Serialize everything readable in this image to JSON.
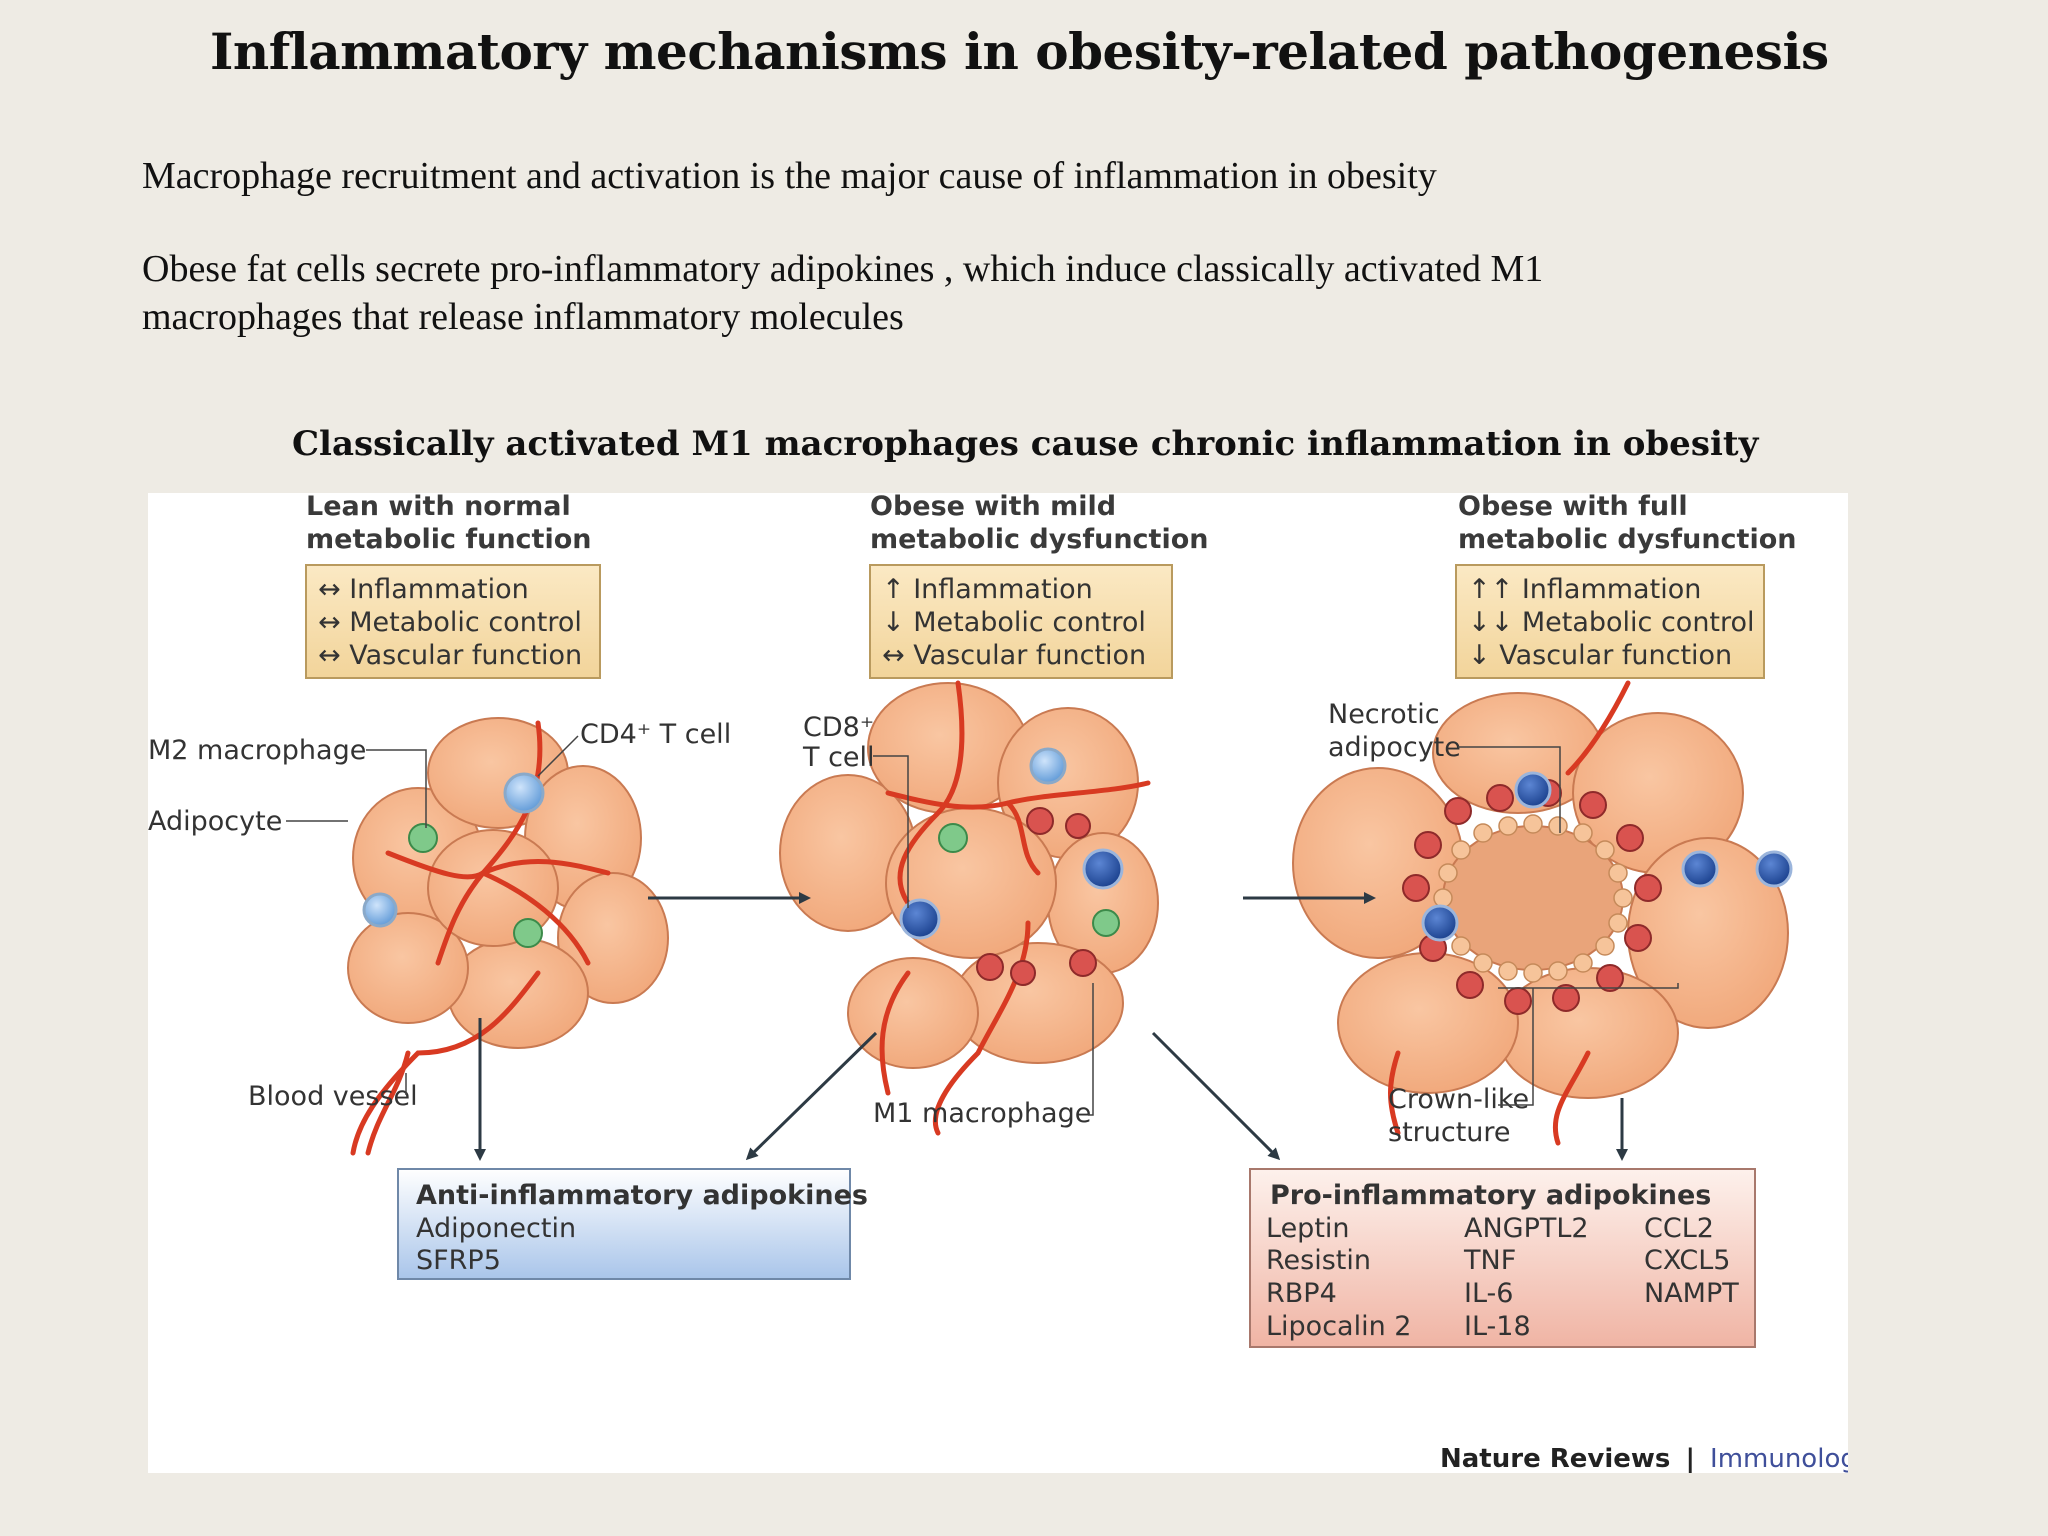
{
  "title": "Inflammatory mechanisms in obesity-related pathogenesis",
  "paragraph1": "Macrophage recruitment and activation is the major cause of inflammation in obesity",
  "paragraph2_line1": "Obese fat cells secrete  pro-inflammatory adipokines , which induce classically activated M1",
  "paragraph2_line2": "macrophages  that release inflammatory molecules",
  "subtitle": "Classically activated M1 macrophages  cause chronic inflammation in obesity",
  "stages": [
    {
      "title_line1": "Lean with normal",
      "title_line2": "metabolic function",
      "box": [
        "↔ Inflammation",
        "↔ Metabolic control",
        "↔ Vascular function"
      ]
    },
    {
      "title_line1": "Obese with mild",
      "title_line2": "metabolic dysfunction",
      "box": [
        "↑ Inflammation",
        "↓ Metabolic control",
        "↔ Vascular function"
      ]
    },
    {
      "title_line1": "Obese with full",
      "title_line2": "metabolic dysfunction",
      "box": [
        "↑↑ Inflammation",
        "↓↓ Metabolic control",
        "↓  Vascular function"
      ]
    }
  ],
  "labels": {
    "m2_macrophage": "M2 macrophage",
    "adipocyte": "Adipocyte",
    "cd4_t_cell": "CD4⁺ T cell",
    "blood_vessel": "Blood vessel",
    "cd8_line1": "CD8⁺",
    "cd8_line2": "T cell",
    "m1_macrophage": "M1 macrophage",
    "necrotic_line1": "Necrotic",
    "necrotic_line2": "adipocyte",
    "crown_line1": "Crown-like",
    "crown_line2": "structure"
  },
  "anti_box": {
    "title": "Anti-inflammatory adipokines",
    "items": [
      "Adiponectin",
      "SFRP5"
    ]
  },
  "pro_box": {
    "title": "Pro-inflammatory adipokines",
    "col1": [
      "Leptin",
      "Resistin",
      "RBP4",
      "Lipocalin 2"
    ],
    "col2": [
      "ANGPTL2",
      "TNF",
      "IL-6",
      "IL-18"
    ],
    "col3": [
      "CCL2",
      "CXCL5",
      "NAMPT"
    ]
  },
  "credit": {
    "journal": "Nature Reviews",
    "separator": "|",
    "section": "Immunology"
  },
  "colors": {
    "background": "#eeebe4",
    "adipocyte": "#f5b48c",
    "adipocyte_stroke": "#c97a52",
    "blood_vessel": "#d83a22",
    "t_cell_cd4": "#6fa8e0",
    "t_cell_cd8": "#1f4ea0",
    "m2_macrophage": "#7fc98a",
    "m1_macrophage": "#d9534f",
    "summary_box": "#f7dfae",
    "anti_box": "#bcd3ee",
    "pro_box": "#f2c2b6",
    "journal": "#222222",
    "section": "#3f4f9a"
  }
}
